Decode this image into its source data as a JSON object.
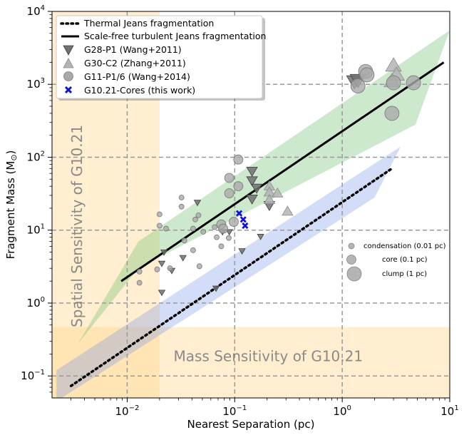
{
  "chart_data": {
    "type": "scatter",
    "xlabel": "Nearest Separation (pc)",
    "ylabel": "Fragment Mass (M",
    "ylabel_sub": "⊙",
    "ylabel_close": ")",
    "xscale": "log",
    "yscale": "log",
    "xlim": [
      0.002,
      10
    ],
    "ylim": [
      0.05,
      10000
    ],
    "x_ticks": [
      0.01,
      0.1,
      1,
      10
    ],
    "y_ticks": [
      0.1,
      1,
      10,
      100,
      1000,
      10000
    ],
    "x_tick_labels": [
      {
        "base": "10",
        "exp": "−2"
      },
      {
        "base": "10",
        "exp": "−1"
      },
      {
        "base": "10",
        "exp": "0"
      },
      {
        "base": "10",
        "exp": "1"
      }
    ],
    "y_tick_labels": [
      {
        "base": "10",
        "exp": "−1"
      },
      {
        "base": "10",
        "exp": "0"
      },
      {
        "base": "10",
        "exp": "1"
      },
      {
        "base": "10",
        "exp": "2"
      },
      {
        "base": "10",
        "exp": "3"
      },
      {
        "base": "10",
        "exp": "4"
      }
    ],
    "grid": "major dashed",
    "legend_placement": "top-left",
    "legend": [
      {
        "label": "Thermal Jeans fragmentation",
        "marker": "dotted-line"
      },
      {
        "label": "Scale-free turbulent Jeans fragmentation",
        "marker": "solid-line"
      },
      {
        "label": "G28-P1 (Wang+2011)",
        "marker": "triangle-down"
      },
      {
        "label": "G30-C2 (Zhang+2011)",
        "marker": "triangle-up"
      },
      {
        "label": "G11-P1/6 (Wang+2014)",
        "marker": "circle"
      },
      {
        "label": "G10.21-Cores (this work)",
        "marker": "x"
      }
    ],
    "size_legend": [
      {
        "label": "condensation (0.01 pc)",
        "size": 0.01
      },
      {
        "label": "core (0.1 pc)",
        "size": 0.1
      },
      {
        "label": "clump (1 pc)",
        "size": 1
      }
    ],
    "region_labels": {
      "spatial": "Spatial Sensitivity of G10.21",
      "mass": "Mass Sensitivity of G10.21"
    },
    "colors": {
      "thermal_band": "#6d8fe8",
      "turbulent_band": "#6fbf6f",
      "sensitivity": "#ffd58a",
      "g28": "#707070",
      "g30": "#b4b4b4",
      "g11": "#a9a9a9",
      "g10": "#1111dd"
    },
    "thermal_line": {
      "x": [
        0.003,
        2.9
      ],
      "y": [
        0.073,
        70
      ]
    },
    "turbulent_line": {
      "x": [
        0.0088,
        8.8
      ],
      "y": [
        2.0,
        2000
      ]
    },
    "thermal_band": {
      "upper": [
        [
          0.0022,
          0.12
        ],
        [
          3.5,
          140
        ]
      ],
      "lower": [
        [
          0.0022,
          0.045
        ],
        [
          2.0,
          28
        ],
        [
          3.5,
          140
        ]
      ]
    },
    "turbulent_band": {
      "upper": [
        [
          0.0127,
          7
        ],
        [
          10,
          5500
        ]
      ],
      "lower": [
        [
          0.0035,
          0.28
        ],
        [
          0.0127,
          3
        ],
        [
          4.8,
          280
        ],
        [
          10,
          5500
        ]
      ]
    },
    "spatial_sensitivity_x": 0.02,
    "mass_sensitivity_y": 0.47,
    "series": [
      {
        "name": "G28-P1 (Wang+2011)",
        "marker": "triangle-down",
        "points": [
          {
            "x": 0.022,
            "y": 5.0,
            "size": 0.01
          },
          {
            "x": 0.021,
            "y": 3.5,
            "size": 0.01
          },
          {
            "x": 0.026,
            "y": 2.8,
            "size": 0.01
          },
          {
            "x": 0.021,
            "y": 1.4,
            "size": 0.01
          },
          {
            "x": 0.033,
            "y": 4.2,
            "size": 0.01
          },
          {
            "x": 0.045,
            "y": 24,
            "size": 0.01
          },
          {
            "x": 0.067,
            "y": 1.6,
            "size": 0.01
          },
          {
            "x": 0.077,
            "y": 9.5,
            "size": 0.01
          },
          {
            "x": 0.089,
            "y": 9.5,
            "size": 0.01
          },
          {
            "x": 0.117,
            "y": 5.2,
            "size": 0.01
          },
          {
            "x": 0.174,
            "y": 8.2,
            "size": 0.01
          },
          {
            "x": 0.145,
            "y": 65,
            "size": 0.1
          },
          {
            "x": 0.145,
            "y": 48,
            "size": 0.1
          },
          {
            "x": 0.16,
            "y": 38,
            "size": 0.1
          },
          {
            "x": 0.145,
            "y": 27,
            "size": 0.1
          },
          {
            "x": 0.21,
            "y": 22,
            "size": 0.1
          },
          {
            "x": 1.3,
            "y": 1100,
            "size": 1
          },
          {
            "x": 1.4,
            "y": 1150,
            "size": 1
          }
        ]
      },
      {
        "name": "G30-C2 (Zhang+2011)",
        "marker": "triangle-up",
        "points": [
          {
            "x": 0.21,
            "y": 40,
            "size": 0.1
          },
          {
            "x": 0.21,
            "y": 33,
            "size": 0.1
          },
          {
            "x": 0.25,
            "y": 32,
            "size": 0.1
          },
          {
            "x": 0.21,
            "y": 26,
            "size": 0.1
          },
          {
            "x": 0.31,
            "y": 18,
            "size": 0.1
          },
          {
            "x": 3.0,
            "y": 1800,
            "size": 1
          },
          {
            "x": 3.2,
            "y": 1350,
            "size": 1
          },
          {
            "x": 2.9,
            "y": 1100,
            "size": 1
          }
        ]
      },
      {
        "name": "G11-P1/6 (Wang+2014)",
        "marker": "circle",
        "points": [
          {
            "x": 0.013,
            "y": 2.7,
            "size": 0.01
          },
          {
            "x": 0.013,
            "y": 1.9,
            "size": 0.01
          },
          {
            "x": 0.019,
            "y": 2.9,
            "size": 0.01
          },
          {
            "x": 0.02,
            "y": 16.5,
            "size": 0.01
          },
          {
            "x": 0.02,
            "y": 11.5,
            "size": 0.01
          },
          {
            "x": 0.023,
            "y": 10.5,
            "size": 0.01
          },
          {
            "x": 0.025,
            "y": 3.0,
            "size": 0.01
          },
          {
            "x": 0.032,
            "y": 28,
            "size": 0.01
          },
          {
            "x": 0.032,
            "y": 21,
            "size": 0.01
          },
          {
            "x": 0.034,
            "y": 7.2,
            "size": 0.01
          },
          {
            "x": 0.041,
            "y": 10.5,
            "size": 0.01
          },
          {
            "x": 0.043,
            "y": 14,
            "size": 0.01
          },
          {
            "x": 0.046,
            "y": 16,
            "size": 0.01
          },
          {
            "x": 0.041,
            "y": 5.3,
            "size": 0.01
          },
          {
            "x": 0.047,
            "y": 3.2,
            "size": 0.01
          },
          {
            "x": 0.051,
            "y": 9.5,
            "size": 0.01
          },
          {
            "x": 0.065,
            "y": 11,
            "size": 0.01
          },
          {
            "x": 0.068,
            "y": 8,
            "size": 0.01
          },
          {
            "x": 0.075,
            "y": 6.0,
            "size": 0.01
          },
          {
            "x": 0.088,
            "y": 7.8,
            "size": 0.01
          },
          {
            "x": 0.075,
            "y": 12,
            "size": 0.1
          },
          {
            "x": 0.078,
            "y": 10.5,
            "size": 0.1
          },
          {
            "x": 0.098,
            "y": 13,
            "size": 0.1
          },
          {
            "x": 0.089,
            "y": 32,
            "size": 0.1
          },
          {
            "x": 0.089,
            "y": 52,
            "size": 0.1
          },
          {
            "x": 0.108,
            "y": 40,
            "size": 0.1
          },
          {
            "x": 0.108,
            "y": 93,
            "size": 0.1
          },
          {
            "x": 1.4,
            "y": 950,
            "size": 1
          },
          {
            "x": 1.65,
            "y": 1500,
            "size": 1
          },
          {
            "x": 1.7,
            "y": 1350,
            "size": 1
          },
          {
            "x": 2.9,
            "y": 400,
            "size": 1
          },
          {
            "x": 3.0,
            "y": 1050,
            "size": 1
          },
          {
            "x": 4.6,
            "y": 1050,
            "size": 1
          }
        ]
      },
      {
        "name": "G10.21-Cores (this work)",
        "marker": "x",
        "points": [
          {
            "x": 0.11,
            "y": 17
          },
          {
            "x": 0.12,
            "y": 14
          },
          {
            "x": 0.125,
            "y": 11.5
          }
        ]
      }
    ]
  }
}
